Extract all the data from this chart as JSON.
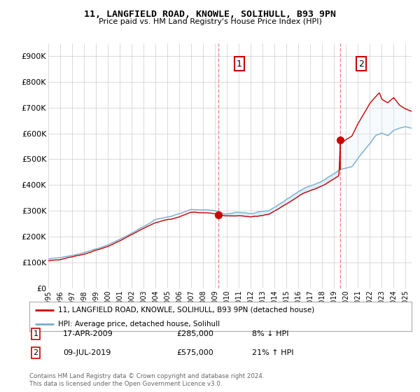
{
  "title": "11, LANGFIELD ROAD, KNOWLE, SOLIHULL, B93 9PN",
  "subtitle": "Price paid vs. HM Land Registry's House Price Index (HPI)",
  "ylabel_ticks": [
    "£0",
    "£100K",
    "£200K",
    "£300K",
    "£400K",
    "£500K",
    "£600K",
    "£700K",
    "£800K",
    "£900K"
  ],
  "ytick_values": [
    0,
    100000,
    200000,
    300000,
    400000,
    500000,
    600000,
    700000,
    800000,
    900000
  ],
  "ylim": [
    0,
    950000
  ],
  "xlim_start": 1995.0,
  "xlim_end": 2025.5,
  "transaction1": {
    "date_num": 2009.3,
    "price": 285000,
    "label": "1",
    "date_str": "17-APR-2009",
    "price_str": "£285,000",
    "hpi_str": "8% ↓ HPI"
  },
  "transaction2": {
    "date_num": 2019.52,
    "price": 575000,
    "label": "2",
    "date_str": "09-JUL-2019",
    "price_str": "£575,000",
    "hpi_str": "21% ↑ HPI"
  },
  "line_color_red": "#cc0000",
  "line_color_blue": "#7aadcc",
  "fill_color_blue": "#ddeef8",
  "vline_color": "#ee8888",
  "background_color": "#ffffff",
  "grid_color": "#cccccc",
  "legend_label_red": "11, LANGFIELD ROAD, KNOWLE, SOLIHULL, B93 9PN (detached house)",
  "legend_label_blue": "HPI: Average price, detached house, Solihull",
  "footer_text": "Contains HM Land Registry data © Crown copyright and database right 2024.\nThis data is licensed under the Open Government Licence v3.0.",
  "xtick_years": [
    1995,
    1996,
    1997,
    1998,
    1999,
    2000,
    2001,
    2002,
    2003,
    2004,
    2005,
    2006,
    2007,
    2008,
    2009,
    2010,
    2011,
    2012,
    2013,
    2014,
    2015,
    2016,
    2017,
    2018,
    2019,
    2020,
    2021,
    2022,
    2023,
    2024,
    2025
  ]
}
